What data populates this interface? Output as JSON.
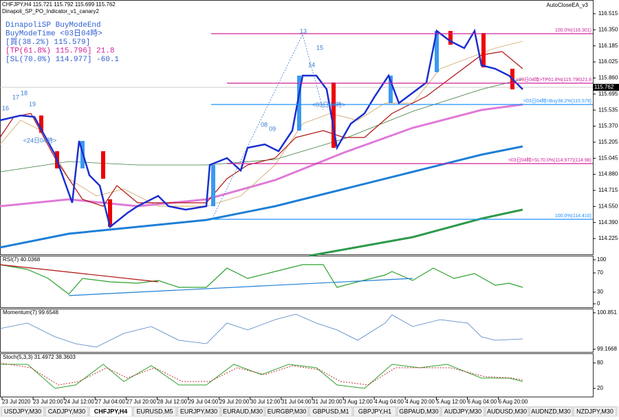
{
  "header": {
    "symbol_line": "CHFJPY,H4  115.721 115.792 115.699 115.762",
    "indicator": "Dinapoli_SP_PO_Indicator_v1_canary2",
    "expert": "AutoCloseEA_v3"
  },
  "info": [
    "DinapoliSP BuyModeEnd",
    "BuyModeTime <03日04時>",
    "[買(38.2%) 115.579]",
    "[TP(61.8%) 115.796] 21.8",
    "[SL(70.0%) 114.977] -60.1"
  ],
  "levels": [
    "100.0%(116.301)",
    "<03日04時>TP61.8%(115.796)21.8",
    "<03日04時>Buy38.2%(115.579)",
    "<03日04時>SL70.0%(114.977)(114.98)",
    "100.0%(114.410)"
  ],
  "price_scale": [
    "116.515",
    "116.350",
    "116.185",
    "116.025",
    "115.860",
    "115.695",
    "115.535",
    "115.370",
    "115.205",
    "115.045",
    "114.880",
    "114.715",
    "114.550",
    "114.390",
    "114.225"
  ],
  "current_price": "115.762",
  "annotations": [
    "16",
    "17",
    "18",
    "19",
    "<24日04時>",
    "13",
    "14",
    "15",
    "08",
    "09",
    "<03日04時>"
  ],
  "panels": [
    {
      "title": "RSI(7) 40.0368",
      "scale": [
        "100",
        "70",
        "30",
        "0"
      ]
    },
    {
      "title": "Momentum(7) 99.6548",
      "scale": [
        "100.851",
        "99.1668"
      ]
    },
    {
      "title": "Stoch(5,3,3) 31.4972 38.3603",
      "scale": [
        "80",
        "20"
      ]
    }
  ],
  "time_axis": [
    "23 Jul 2020",
    "23 Jul 20:00",
    "24 Jul 12:00",
    "27 Jul 04:00",
    "27 Jul 20:00",
    "28 Jul 12:00",
    "29 Jul 04:00",
    "29 Jul 20:00",
    "30 Jul 12:00",
    "31 Jul 04:00",
    "31 Jul 20:00",
    "3 Aug 12:00",
    "4 Aug 04:00",
    "4 Aug 20:00",
    "5 Aug 12:00",
    "6 Aug 04:00",
    "6 Aug 20:00"
  ],
  "tabs": [
    "USDJPY,M30",
    "CADJPY,M30",
    "CHFJPY,H4",
    "EURUSD,M5",
    "EURJPY,M30",
    "EURAUD,M30",
    "EURGBP,M30",
    "GBPUSD,M1",
    "GBPJPY,H1",
    "GBPAUD,M30",
    "AUDJPY,M30",
    "AUDUSD,M30",
    "AUDNZD,M30",
    "NZDJPY,M30"
  ]
}
